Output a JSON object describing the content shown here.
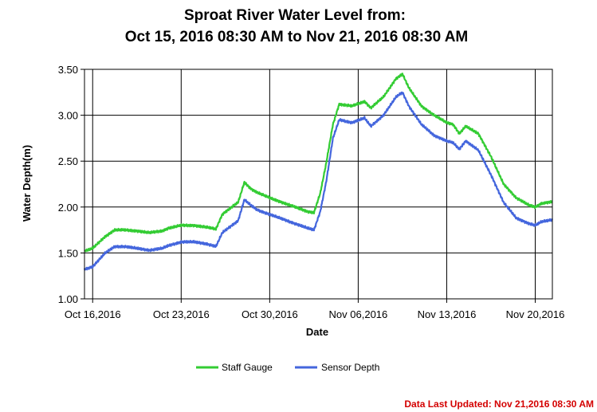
{
  "chart_data": {
    "type": "line",
    "title_line1": "Sproat River Water Level from:",
    "title_line2": "Oct 15, 2016 08:30 AM to Nov 21, 2016 08:30 AM",
    "xlabel": "Date",
    "ylabel": "Water Depth(m)",
    "ylim": [
      1.0,
      3.5
    ],
    "yticks": [
      "1.00",
      "1.50",
      "2.00",
      "2.50",
      "3.00",
      "3.50"
    ],
    "xticks": [
      "Oct 16,2016",
      "Oct 23,2016",
      "Oct 30,2016",
      "Nov 06,2016",
      "Nov 13,2016",
      "Nov 20,2016"
    ],
    "x_range": [
      "2016-10-15T08:30",
      "2016-11-21T08:30"
    ],
    "grid": true,
    "legend_position": "bottom",
    "series": [
      {
        "name": "Staff Gauge",
        "color": "#33cc33",
        "x": [
          "2016-10-15T08:30",
          "2016-10-16T00:00",
          "2016-10-17T00:00",
          "2016-10-17T18:00",
          "2016-10-18T12:00",
          "2016-10-19T12:00",
          "2016-10-20T12:00",
          "2016-10-21T12:00",
          "2016-10-22T00:00",
          "2016-10-23T00:00",
          "2016-10-24T00:00",
          "2016-10-25T00:00",
          "2016-10-25T18:00",
          "2016-10-26T06:00",
          "2016-10-27T00:00",
          "2016-10-27T12:00",
          "2016-10-28T00:00",
          "2016-10-28T12:00",
          "2016-10-29T00:00",
          "2016-10-30T00:00",
          "2016-10-31T00:00",
          "2016-11-01T00:00",
          "2016-11-02T00:00",
          "2016-11-02T12:00",
          "2016-11-03T00:00",
          "2016-11-03T12:00",
          "2016-11-04T00:00",
          "2016-11-04T12:00",
          "2016-11-05T12:00",
          "2016-11-06T12:00",
          "2016-11-07T00:00",
          "2016-11-08T00:00",
          "2016-11-09T00:00",
          "2016-11-09T12:00",
          "2016-11-10T00:00",
          "2016-11-11T00:00",
          "2016-11-12T00:00",
          "2016-11-13T00:00",
          "2016-11-13T12:00",
          "2016-11-14T00:00",
          "2016-11-14T12:00",
          "2016-11-15T12:00",
          "2016-11-16T12:00",
          "2016-11-17T12:00",
          "2016-11-18T12:00",
          "2016-11-19T12:00",
          "2016-11-20T00:00",
          "2016-11-20T12:00",
          "2016-11-21T08:30"
        ],
        "values": [
          1.52,
          1.55,
          1.68,
          1.75,
          1.75,
          1.74,
          1.72,
          1.74,
          1.77,
          1.8,
          1.8,
          1.78,
          1.76,
          1.92,
          2.0,
          2.05,
          2.27,
          2.2,
          2.16,
          2.1,
          2.05,
          2.0,
          1.95,
          1.94,
          2.15,
          2.5,
          2.9,
          3.12,
          3.1,
          3.15,
          3.08,
          3.2,
          3.4,
          3.45,
          3.3,
          3.1,
          3.0,
          2.92,
          2.9,
          2.8,
          2.88,
          2.8,
          2.55,
          2.25,
          2.1,
          2.02,
          2.0,
          2.04,
          2.06
        ]
      },
      {
        "name": "Sensor Depth",
        "color": "#4466dd",
        "x": [
          "2016-10-15T08:30",
          "2016-10-16T00:00",
          "2016-10-17T00:00",
          "2016-10-17T18:00",
          "2016-10-18T12:00",
          "2016-10-19T12:00",
          "2016-10-20T12:00",
          "2016-10-21T12:00",
          "2016-10-22T00:00",
          "2016-10-23T00:00",
          "2016-10-24T00:00",
          "2016-10-25T00:00",
          "2016-10-25T18:00",
          "2016-10-26T06:00",
          "2016-10-27T00:00",
          "2016-10-27T12:00",
          "2016-10-28T00:00",
          "2016-10-28T12:00",
          "2016-10-29T00:00",
          "2016-10-30T00:00",
          "2016-10-31T00:00",
          "2016-11-01T00:00",
          "2016-11-02T00:00",
          "2016-11-02T12:00",
          "2016-11-03T00:00",
          "2016-11-03T12:00",
          "2016-11-04T00:00",
          "2016-11-04T12:00",
          "2016-11-05T12:00",
          "2016-11-06T12:00",
          "2016-11-07T00:00",
          "2016-11-08T00:00",
          "2016-11-09T00:00",
          "2016-11-09T12:00",
          "2016-11-10T00:00",
          "2016-11-11T00:00",
          "2016-11-12T00:00",
          "2016-11-13T00:00",
          "2016-11-13T12:00",
          "2016-11-14T00:00",
          "2016-11-14T12:00",
          "2016-11-15T12:00",
          "2016-11-16T12:00",
          "2016-11-17T12:00",
          "2016-11-18T12:00",
          "2016-11-19T12:00",
          "2016-11-20T00:00",
          "2016-11-20T12:00",
          "2016-11-21T08:30"
        ],
        "values": [
          1.32,
          1.35,
          1.5,
          1.57,
          1.57,
          1.55,
          1.53,
          1.55,
          1.58,
          1.62,
          1.62,
          1.6,
          1.57,
          1.72,
          1.8,
          1.85,
          2.08,
          2.02,
          1.97,
          1.92,
          1.87,
          1.82,
          1.77,
          1.75,
          1.95,
          2.3,
          2.75,
          2.95,
          2.92,
          2.97,
          2.88,
          3.0,
          3.2,
          3.25,
          3.1,
          2.9,
          2.78,
          2.72,
          2.7,
          2.63,
          2.72,
          2.62,
          2.35,
          2.05,
          1.88,
          1.82,
          1.8,
          1.84,
          1.86
        ]
      }
    ]
  },
  "footer": {
    "last_updated": "Data Last Updated: Nov 21,2016 08:30 AM"
  }
}
